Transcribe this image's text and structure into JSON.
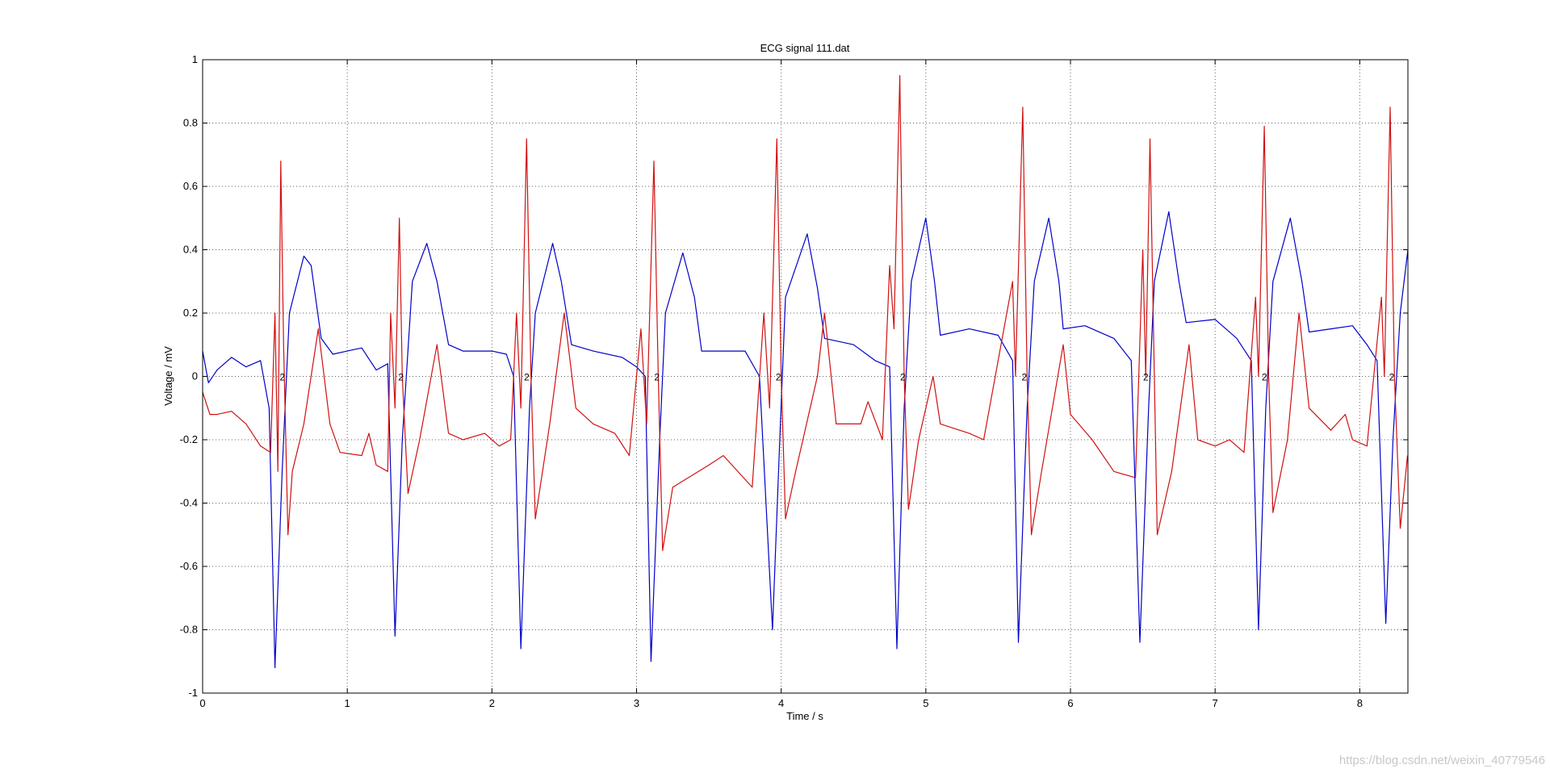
{
  "chart_data": {
    "type": "line",
    "title": "ECG signal 111.dat",
    "xlabel": "Time / s",
    "ylabel": "Voltage / mV",
    "xlim": [
      0,
      8.333
    ],
    "ylim": [
      -1,
      1
    ],
    "xticks": [
      0,
      1,
      2,
      3,
      4,
      5,
      6,
      7,
      8
    ],
    "yticks": [
      -1,
      -0.8,
      -0.6,
      -0.4,
      -0.2,
      0,
      0.2,
      0.4,
      0.6,
      0.8,
      1
    ],
    "grid": true,
    "colors": {
      "series_1": "#0000c8",
      "series_2": "#d01010",
      "grid": "#606060"
    },
    "beat_times": [
      0.51,
      1.33,
      2.2,
      3.1,
      3.94,
      4.8,
      5.64,
      6.48,
      7.3,
      8.18
    ],
    "series": [
      {
        "color": "#0000c8",
        "points": [
          [
            0.0,
            0.08
          ],
          [
            0.04,
            -0.02
          ],
          [
            0.1,
            0.02
          ],
          [
            0.2,
            0.06
          ],
          [
            0.3,
            0.03
          ],
          [
            0.4,
            0.05
          ],
          [
            0.46,
            -0.1
          ],
          [
            0.5,
            -0.92
          ],
          [
            0.55,
            -0.3
          ],
          [
            0.6,
            0.2
          ],
          [
            0.7,
            0.38
          ],
          [
            0.75,
            0.35
          ],
          [
            0.82,
            0.12
          ],
          [
            0.9,
            0.07
          ],
          [
            1.0,
            0.08
          ],
          [
            1.1,
            0.09
          ],
          [
            1.2,
            0.02
          ],
          [
            1.28,
            0.04
          ],
          [
            1.33,
            -0.82
          ],
          [
            1.38,
            -0.2
          ],
          [
            1.45,
            0.3
          ],
          [
            1.55,
            0.42
          ],
          [
            1.62,
            0.3
          ],
          [
            1.7,
            0.1
          ],
          [
            1.8,
            0.08
          ],
          [
            2.0,
            0.08
          ],
          [
            2.1,
            0.07
          ],
          [
            2.15,
            0.0
          ],
          [
            2.2,
            -0.86
          ],
          [
            2.26,
            -0.1
          ],
          [
            2.3,
            0.2
          ],
          [
            2.42,
            0.42
          ],
          [
            2.48,
            0.3
          ],
          [
            2.55,
            0.1
          ],
          [
            2.7,
            0.08
          ],
          [
            2.9,
            0.06
          ],
          [
            3.0,
            0.03
          ],
          [
            3.06,
            0.0
          ],
          [
            3.1,
            -0.9
          ],
          [
            3.16,
            -0.2
          ],
          [
            3.2,
            0.2
          ],
          [
            3.32,
            0.39
          ],
          [
            3.4,
            0.25
          ],
          [
            3.45,
            0.08
          ],
          [
            3.6,
            0.08
          ],
          [
            3.75,
            0.08
          ],
          [
            3.85,
            0.0
          ],
          [
            3.94,
            -0.8
          ],
          [
            3.99,
            -0.2
          ],
          [
            4.03,
            0.25
          ],
          [
            4.18,
            0.45
          ],
          [
            4.25,
            0.28
          ],
          [
            4.3,
            0.12
          ],
          [
            4.5,
            0.1
          ],
          [
            4.65,
            0.05
          ],
          [
            4.75,
            0.03
          ],
          [
            4.8,
            -0.86
          ],
          [
            4.85,
            -0.1
          ],
          [
            4.9,
            0.3
          ],
          [
            5.0,
            0.5
          ],
          [
            5.06,
            0.3
          ],
          [
            5.1,
            0.13
          ],
          [
            5.3,
            0.15
          ],
          [
            5.5,
            0.13
          ],
          [
            5.6,
            0.05
          ],
          [
            5.64,
            -0.84
          ],
          [
            5.7,
            -0.1
          ],
          [
            5.75,
            0.3
          ],
          [
            5.85,
            0.5
          ],
          [
            5.92,
            0.3
          ],
          [
            5.95,
            0.15
          ],
          [
            6.1,
            0.16
          ],
          [
            6.3,
            0.12
          ],
          [
            6.42,
            0.05
          ],
          [
            6.48,
            -0.84
          ],
          [
            6.54,
            -0.1
          ],
          [
            6.58,
            0.3
          ],
          [
            6.68,
            0.52
          ],
          [
            6.75,
            0.3
          ],
          [
            6.8,
            0.17
          ],
          [
            7.0,
            0.18
          ],
          [
            7.15,
            0.12
          ],
          [
            7.25,
            0.05
          ],
          [
            7.3,
            -0.8
          ],
          [
            7.35,
            -0.1
          ],
          [
            7.4,
            0.3
          ],
          [
            7.52,
            0.5
          ],
          [
            7.6,
            0.3
          ],
          [
            7.65,
            0.14
          ],
          [
            7.8,
            0.15
          ],
          [
            7.95,
            0.16
          ],
          [
            8.05,
            0.1
          ],
          [
            8.12,
            0.05
          ],
          [
            8.18,
            -0.78
          ],
          [
            8.23,
            -0.2
          ],
          [
            8.28,
            0.2
          ],
          [
            8.333,
            0.4
          ]
        ]
      },
      {
        "color": "#d01010",
        "points": [
          [
            0.0,
            -0.05
          ],
          [
            0.05,
            -0.12
          ],
          [
            0.1,
            -0.12
          ],
          [
            0.2,
            -0.11
          ],
          [
            0.3,
            -0.15
          ],
          [
            0.4,
            -0.22
          ],
          [
            0.47,
            -0.24
          ],
          [
            0.5,
            0.2
          ],
          [
            0.52,
            -0.3
          ],
          [
            0.54,
            0.68
          ],
          [
            0.56,
            0.1
          ],
          [
            0.59,
            -0.5
          ],
          [
            0.62,
            -0.3
          ],
          [
            0.7,
            -0.15
          ],
          [
            0.8,
            0.15
          ],
          [
            0.88,
            -0.15
          ],
          [
            0.95,
            -0.24
          ],
          [
            1.1,
            -0.25
          ],
          [
            1.15,
            -0.18
          ],
          [
            1.2,
            -0.28
          ],
          [
            1.28,
            -0.3
          ],
          [
            1.3,
            0.2
          ],
          [
            1.33,
            -0.1
          ],
          [
            1.36,
            0.5
          ],
          [
            1.38,
            0.0
          ],
          [
            1.42,
            -0.37
          ],
          [
            1.5,
            -0.2
          ],
          [
            1.62,
            0.1
          ],
          [
            1.7,
            -0.18
          ],
          [
            1.8,
            -0.2
          ],
          [
            1.95,
            -0.18
          ],
          [
            2.05,
            -0.22
          ],
          [
            2.13,
            -0.2
          ],
          [
            2.17,
            0.2
          ],
          [
            2.2,
            -0.1
          ],
          [
            2.24,
            0.75
          ],
          [
            2.27,
            0.0
          ],
          [
            2.3,
            -0.45
          ],
          [
            2.4,
            -0.15
          ],
          [
            2.5,
            0.2
          ],
          [
            2.58,
            -0.1
          ],
          [
            2.7,
            -0.15
          ],
          [
            2.85,
            -0.18
          ],
          [
            2.95,
            -0.25
          ],
          [
            3.03,
            0.15
          ],
          [
            3.07,
            -0.15
          ],
          [
            3.12,
            0.68
          ],
          [
            3.15,
            0.0
          ],
          [
            3.18,
            -0.55
          ],
          [
            3.25,
            -0.35
          ],
          [
            3.5,
            -0.28
          ],
          [
            3.6,
            -0.25
          ],
          [
            3.8,
            -0.35
          ],
          [
            3.88,
            0.2
          ],
          [
            3.92,
            -0.1
          ],
          [
            3.97,
            0.75
          ],
          [
            4.0,
            0.0
          ],
          [
            4.03,
            -0.45
          ],
          [
            4.1,
            -0.3
          ],
          [
            4.25,
            0.0
          ],
          [
            4.3,
            0.2
          ],
          [
            4.38,
            -0.15
          ],
          [
            4.55,
            -0.15
          ],
          [
            4.6,
            -0.08
          ],
          [
            4.7,
            -0.2
          ],
          [
            4.75,
            0.35
          ],
          [
            4.78,
            0.15
          ],
          [
            4.82,
            0.95
          ],
          [
            4.85,
            0.0
          ],
          [
            4.88,
            -0.42
          ],
          [
            4.95,
            -0.2
          ],
          [
            5.05,
            0.0
          ],
          [
            5.1,
            -0.15
          ],
          [
            5.3,
            -0.18
          ],
          [
            5.4,
            -0.2
          ],
          [
            5.6,
            0.3
          ],
          [
            5.62,
            0.0
          ],
          [
            5.67,
            0.85
          ],
          [
            5.7,
            0.0
          ],
          [
            5.73,
            -0.5
          ],
          [
            5.8,
            -0.3
          ],
          [
            5.95,
            0.1
          ],
          [
            6.0,
            -0.12
          ],
          [
            6.15,
            -0.2
          ],
          [
            6.3,
            -0.3
          ],
          [
            6.45,
            -0.32
          ],
          [
            6.5,
            0.4
          ],
          [
            6.52,
            0.0
          ],
          [
            6.55,
            0.75
          ],
          [
            6.58,
            0.0
          ],
          [
            6.6,
            -0.5
          ],
          [
            6.7,
            -0.3
          ],
          [
            6.82,
            0.1
          ],
          [
            6.88,
            -0.2
          ],
          [
            7.0,
            -0.22
          ],
          [
            7.1,
            -0.2
          ],
          [
            7.2,
            -0.24
          ],
          [
            7.28,
            0.25
          ],
          [
            7.3,
            0.0
          ],
          [
            7.34,
            0.79
          ],
          [
            7.37,
            0.0
          ],
          [
            7.4,
            -0.43
          ],
          [
            7.5,
            -0.2
          ],
          [
            7.58,
            0.2
          ],
          [
            7.65,
            -0.1
          ],
          [
            7.8,
            -0.17
          ],
          [
            7.9,
            -0.12
          ],
          [
            7.95,
            -0.2
          ],
          [
            8.05,
            -0.22
          ],
          [
            8.15,
            0.25
          ],
          [
            8.17,
            0.0
          ],
          [
            8.21,
            0.85
          ],
          [
            8.24,
            0.0
          ],
          [
            8.28,
            -0.48
          ],
          [
            8.33,
            -0.25
          ]
        ]
      }
    ]
  },
  "watermark": "https://blog.csdn.net/weixin_40779546"
}
